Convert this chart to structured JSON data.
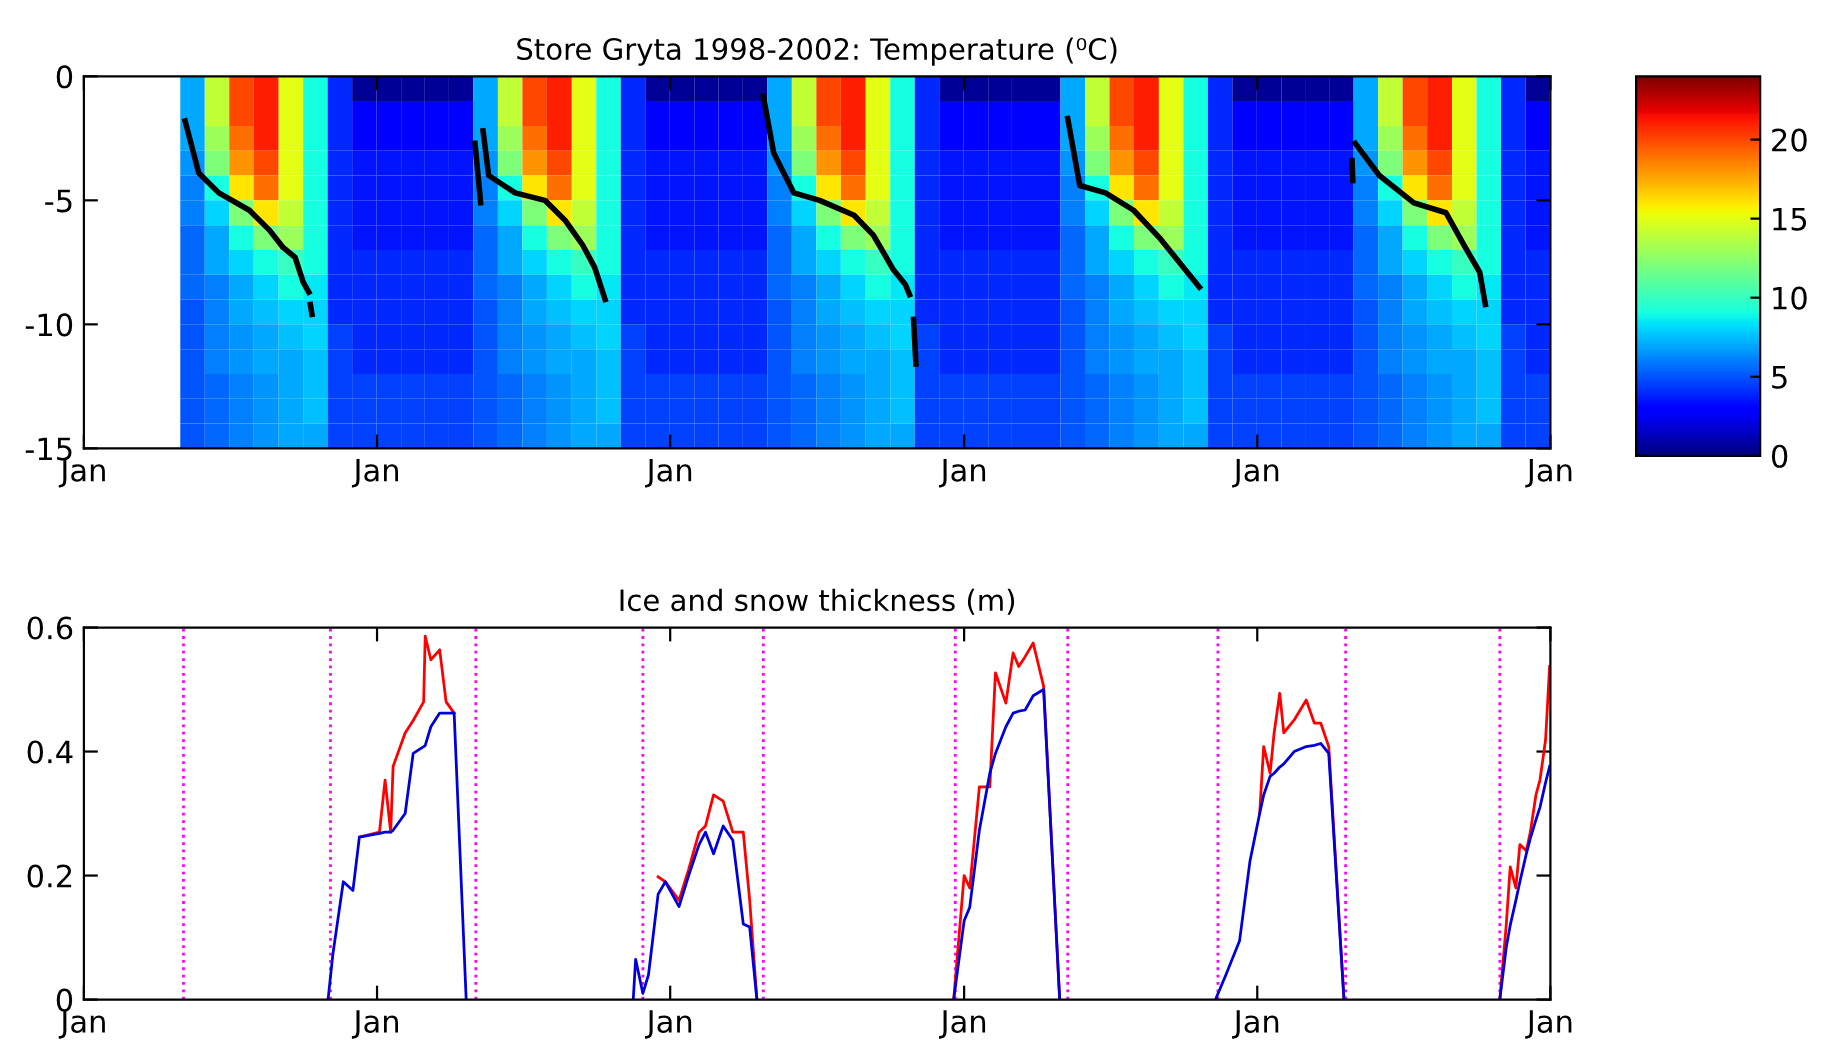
{
  "chart_data": [
    {
      "type": "heatmap",
      "title": "Store Gryta 1998-2002: Temperature (⁰C)",
      "x": [
        "1998-01-16",
        "1998-02-15",
        "1998-03-16",
        "1998-04-16",
        "1998-05-16",
        "1998-06-16",
        "1998-07-16",
        "1998-08-16",
        "1998-09-16",
        "1998-10-16",
        "1998-11-16",
        "1998-12-16",
        "1999-01-16",
        "1999-02-15",
        "1999-03-16",
        "1999-04-16",
        "1999-05-16",
        "1999-06-16",
        "1999-07-16",
        "1999-08-16",
        "1999-09-16",
        "1999-10-16",
        "1999-11-16",
        "1999-12-16",
        "2000-01-16",
        "2000-02-15",
        "2000-03-16",
        "2000-04-16",
        "2000-05-16",
        "2000-06-16",
        "2000-07-16",
        "2000-08-16",
        "2000-09-16",
        "2000-10-16",
        "2000-11-16",
        "2000-12-16",
        "2001-01-16",
        "2001-02-15",
        "2001-03-16",
        "2001-04-16",
        "2001-05-16",
        "2001-06-16",
        "2001-07-16",
        "2001-08-16",
        "2001-09-16",
        "2001-10-16",
        "2001-11-16",
        "2001-12-16",
        "2002-01-16",
        "2002-02-15",
        "2002-03-16",
        "2002-04-16",
        "2002-05-16",
        "2002-06-16",
        "2002-07-16",
        "2002-08-16",
        "2002-09-16",
        "2002-10-16",
        "2002-11-16",
        "2002-12-16"
      ],
      "xlim": [
        "1998-01-01",
        "2003-01-01"
      ],
      "xticks": [
        {
          "value": "1998-01-01",
          "label": "Jan"
        },
        {
          "value": "1999-01-01",
          "label": "Jan"
        },
        {
          "value": "2000-01-01",
          "label": "Jan"
        },
        {
          "value": "2001-01-01",
          "label": "Jan"
        },
        {
          "value": "2002-01-01",
          "label": "Jan"
        },
        {
          "value": "2003-01-01",
          "label": "Jan"
        }
      ],
      "ylim": [
        -15,
        0
      ],
      "yticks": [
        -15,
        -10,
        -5,
        0
      ],
      "clim": [
        0,
        24
      ],
      "cticks": [
        0,
        5,
        10,
        15,
        20
      ],
      "cells": [
        [
          null,
          null,
          null,
          null,
          7,
          14,
          20,
          21,
          15,
          9,
          4,
          0.5,
          0.5,
          0.5,
          0.5,
          0.5,
          7,
          14,
          20,
          21,
          15,
          9,
          4,
          0.5,
          0.5,
          0.5,
          0.5,
          0.5,
          7,
          14,
          20,
          21,
          15,
          9,
          4,
          0.5,
          0.5,
          0.5,
          0.5,
          0.5,
          7,
          14,
          20,
          21,
          15,
          9,
          4,
          0.5,
          0.5,
          0.5,
          0.5,
          0.5,
          7,
          14,
          20,
          21,
          15,
          9,
          4,
          0.5
        ],
        [
          null,
          null,
          null,
          null,
          7,
          14,
          20,
          21,
          15,
          9,
          4,
          3,
          3,
          3,
          3,
          3,
          7,
          14,
          20,
          21,
          15,
          9,
          4,
          3,
          3,
          3,
          3,
          3,
          7,
          14,
          20,
          21,
          15,
          9,
          4,
          3,
          3,
          3,
          3,
          3,
          7,
          14,
          20,
          21,
          15,
          9,
          4,
          3,
          3,
          3,
          3,
          3,
          7,
          14,
          20,
          21,
          15,
          9,
          4,
          3
        ],
        [
          null,
          null,
          null,
          null,
          7,
          13,
          19,
          21,
          15,
          9,
          4,
          3,
          3,
          3,
          3,
          3,
          7,
          13,
          19,
          21,
          15,
          9,
          4,
          3,
          3,
          3,
          3,
          3,
          7,
          13,
          19,
          21,
          15,
          9,
          4,
          3,
          3,
          3,
          3,
          3,
          7,
          13,
          19,
          21,
          15,
          9,
          4,
          3,
          3,
          3,
          3,
          3,
          7,
          13,
          19,
          21,
          15,
          9,
          4,
          3
        ],
        [
          null,
          null,
          null,
          null,
          6.5,
          12,
          18,
          20,
          15,
          9,
          4,
          3.5,
          3.5,
          3.5,
          3.5,
          3.5,
          6.5,
          12,
          18,
          20,
          15,
          9,
          4,
          3.5,
          3.5,
          3.5,
          3.5,
          3.5,
          6.5,
          12,
          18,
          20,
          15,
          9,
          4,
          3.5,
          3.5,
          3.5,
          3.5,
          3.5,
          6.5,
          12,
          18,
          20,
          15,
          9,
          4,
          3.5,
          3.5,
          3.5,
          3.5,
          3.5,
          6.5,
          12,
          18,
          20,
          15,
          9,
          4,
          3.5
        ],
        [
          null,
          null,
          null,
          null,
          6,
          9,
          16,
          19,
          15,
          9,
          4,
          3.5,
          3.5,
          3.5,
          3.5,
          3.5,
          6,
          9,
          16,
          19,
          15,
          9,
          4,
          3.5,
          3.5,
          3.5,
          3.5,
          3.5,
          6,
          9,
          16,
          19,
          15,
          9,
          4,
          3.5,
          3.5,
          3.5,
          3.5,
          3.5,
          6,
          9,
          16,
          19,
          15,
          9,
          4,
          3.5,
          3.5,
          3.5,
          3.5,
          3.5,
          6,
          9,
          16,
          19,
          15,
          9,
          4,
          3.5
        ],
        [
          null,
          null,
          null,
          null,
          6,
          8,
          12,
          16,
          14,
          9,
          4,
          3.5,
          3.5,
          3.5,
          3.5,
          3.5,
          6,
          8,
          12,
          16,
          14,
          9,
          4,
          3.5,
          3.5,
          3.5,
          3.5,
          3.5,
          6,
          8,
          12,
          16,
          14,
          9,
          4,
          3.5,
          3.5,
          3.5,
          3.5,
          3.5,
          6,
          8,
          12,
          16,
          14,
          9,
          4,
          3.5,
          3.5,
          3.5,
          3.5,
          3.5,
          6,
          8,
          12,
          16,
          14,
          9,
          4,
          3.5
        ],
        [
          null,
          null,
          null,
          null,
          5.5,
          7,
          9,
          12,
          13,
          9,
          4,
          3.5,
          3.5,
          3.5,
          3.5,
          3.5,
          5.5,
          7,
          9,
          12,
          13,
          9,
          4,
          3.5,
          3.5,
          3.5,
          3.5,
          3.5,
          5.5,
          7,
          9,
          12,
          13,
          9,
          4,
          3.5,
          3.5,
          3.5,
          3.5,
          3.5,
          5.5,
          7,
          9,
          12,
          13,
          9,
          4,
          3.5,
          3.5,
          3.5,
          3.5,
          3.5,
          5.5,
          7,
          9,
          12,
          13,
          9,
          4,
          3.5
        ],
        [
          null,
          null,
          null,
          null,
          5.5,
          7,
          8,
          9,
          10,
          9,
          4,
          4,
          4,
          4,
          4,
          4,
          5.5,
          7,
          8,
          9,
          10,
          9,
          4,
          4,
          4,
          4,
          4,
          4,
          5.5,
          7,
          8,
          9,
          10,
          9,
          4,
          4,
          4,
          4,
          4,
          4,
          5.5,
          7,
          8,
          9,
          10,
          9,
          4,
          4,
          4,
          4,
          4,
          4,
          5.5,
          7,
          8,
          9,
          10,
          9,
          4,
          4
        ],
        [
          null,
          null,
          null,
          null,
          5.5,
          6,
          7,
          8,
          9,
          8.5,
          4,
          4,
          4,
          4,
          4,
          4,
          5.5,
          6,
          7,
          8,
          9,
          8.5,
          4,
          4,
          4,
          4,
          4,
          4,
          5.5,
          6,
          7,
          8,
          9,
          8.5,
          4,
          4,
          4,
          4,
          4,
          4,
          5.5,
          6,
          7,
          8,
          9,
          8.5,
          4,
          4,
          4,
          4,
          4,
          4,
          5.5,
          6,
          7,
          8,
          9,
          8.5,
          4,
          4
        ],
        [
          null,
          null,
          null,
          null,
          5,
          6,
          7,
          7.5,
          8,
          8,
          4,
          4,
          4,
          4,
          4,
          4,
          5,
          6,
          7,
          7.5,
          8,
          8,
          4,
          4,
          4,
          4,
          4,
          4,
          5,
          6,
          7,
          7.5,
          8,
          8,
          4,
          4,
          4,
          4,
          4,
          4,
          5,
          6,
          7,
          7.5,
          8,
          8,
          4,
          4,
          4,
          4,
          4,
          4,
          5,
          6,
          7,
          7.5,
          8,
          8,
          4,
          4
        ],
        [
          null,
          null,
          null,
          null,
          5,
          6,
          6.5,
          7,
          7.5,
          8,
          4.5,
          4,
          4,
          4,
          4,
          4,
          5,
          6,
          6.5,
          7,
          7.5,
          8,
          4.5,
          4,
          4,
          4,
          4,
          4,
          5,
          6,
          6.5,
          7,
          7.5,
          8,
          4.5,
          4,
          4,
          4,
          4,
          4,
          5,
          6,
          6.5,
          7,
          7.5,
          8,
          4.5,
          4,
          4,
          4,
          4,
          4,
          5,
          6,
          6.5,
          7,
          7.5,
          8,
          4.5,
          4
        ],
        [
          null,
          null,
          null,
          null,
          5,
          6,
          6.5,
          7,
          7,
          7.5,
          4.5,
          4,
          4,
          4,
          4,
          4,
          5,
          6,
          6.5,
          7,
          7,
          7.5,
          4.5,
          4,
          4,
          4,
          4,
          4,
          5,
          6,
          6.5,
          7,
          7,
          7.5,
          4.5,
          4,
          4,
          4,
          4,
          4,
          5,
          6,
          6.5,
          7,
          7,
          7.5,
          4.5,
          4,
          4,
          4,
          4,
          4,
          5,
          6,
          6.5,
          7,
          7,
          7.5,
          4.5,
          4
        ],
        [
          null,
          null,
          null,
          null,
          5,
          5.5,
          6,
          6.5,
          7,
          7.5,
          4.5,
          4.5,
          4.5,
          4.5,
          4.5,
          4.5,
          5,
          5.5,
          6,
          6.5,
          7,
          7.5,
          4.5,
          4.5,
          4.5,
          4.5,
          4.5,
          4.5,
          5,
          5.5,
          6,
          6.5,
          7,
          7.5,
          4.5,
          4.5,
          4.5,
          4.5,
          4.5,
          4.5,
          5,
          5.5,
          6,
          6.5,
          7,
          7.5,
          4.5,
          4.5,
          4.5,
          4.5,
          4.5,
          4.5,
          5,
          5.5,
          6,
          6.5,
          7,
          7.5,
          4.5,
          4.5
        ],
        [
          null,
          null,
          null,
          null,
          5,
          5.5,
          6,
          6.5,
          7,
          7.5,
          4.5,
          4.5,
          4.5,
          4.5,
          4.5,
          4.5,
          5,
          5.5,
          6,
          6.5,
          7,
          7.5,
          4.5,
          4.5,
          4.5,
          4.5,
          4.5,
          4.5,
          5,
          5.5,
          6,
          6.5,
          7,
          7.5,
          4.5,
          4.5,
          4.5,
          4.5,
          4.5,
          4.5,
          5,
          5.5,
          6,
          6.5,
          7,
          7.5,
          4.5,
          4.5,
          4.5,
          4.5,
          4.5,
          4.5,
          5,
          5.5,
          6,
          6.5,
          7,
          7.5,
          4.5,
          4.5
        ],
        [
          null,
          null,
          null,
          null,
          5,
          5.5,
          6,
          6.5,
          7,
          7,
          4.5,
          4.5,
          4.5,
          4.5,
          4.5,
          4.5,
          5,
          5.5,
          6,
          6.5,
          7,
          7,
          4.5,
          4.5,
          4.5,
          4.5,
          4.5,
          4.5,
          5,
          5.5,
          6,
          6.5,
          7,
          7,
          4.5,
          4.5,
          4.5,
          4.5,
          4.5,
          4.5,
          5,
          5.5,
          6,
          6.5,
          7,
          7,
          4.5,
          4.5,
          4.5,
          4.5,
          4.5,
          4.5,
          5,
          5.5,
          6,
          6.5,
          7,
          7,
          4.5,
          4.5
        ]
      ],
      "series": [
        {
          "type": "line",
          "color": "#000000",
          "x": [
            "1998-05-07",
            "1998-05-24",
            "1998-06-18",
            "1998-07-26",
            "1998-08-20",
            "1998-09-06",
            "1998-09-21",
            "1998-10-01",
            "1998-10-08",
            "1998-10-09",
            "1998-10-10",
            "1998-10-12",
            "1999-01-01",
            "1999-05-03",
            "1999-05-10",
            "1999-05-11",
            "1999-05-13",
            "1999-05-20",
            "1999-06-22",
            "1999-07-29",
            "1999-08-23",
            "1999-09-14",
            "1999-09-29",
            "1999-10-12",
            "2000-01-01",
            "2000-04-26",
            "2000-05-09",
            "2000-06-03",
            "2000-07-05",
            "2000-08-17",
            "2000-09-10",
            "2000-10-05",
            "2000-10-20",
            "2000-10-25",
            "2000-10-27",
            "2000-10-30",
            "2000-11-02",
            "2001-01-01",
            "2001-05-10",
            "2001-05-25",
            "2001-06-26",
            "2001-07-31",
            "2001-09-01",
            "2001-10-21",
            "2002-01-01",
            "2002-04-29",
            "2002-04-30",
            "2002-05-01",
            "2002-05-03",
            "2002-06-02",
            "2002-07-15",
            "2002-08-24",
            "2002-09-17",
            "2002-10-05",
            "2002-10-12"
          ],
          "values": [
            -1.8,
            -3.9,
            -4.7,
            -5.4,
            -6.2,
            -6.9,
            -7.3,
            -8.3,
            -8.7,
            null,
            -9.2,
            -9.6,
            null,
            -2.7,
            -5.1,
            null,
            -2.2,
            -4.0,
            -4.7,
            -5.0,
            -5.8,
            -6.8,
            -7.7,
            -9.0,
            null,
            -0.8,
            -3.1,
            -4.7,
            -5.0,
            -5.6,
            -6.4,
            -7.8,
            -8.4,
            -8.8,
            null,
            -9.8,
            -11.6,
            null,
            -1.7,
            -4.4,
            -4.7,
            -5.4,
            -6.5,
            -8.5,
            null,
            -3.4,
            -4.2,
            null,
            -2.7,
            -4.0,
            -5.1,
            -5.5,
            -6.9,
            -7.9,
            -9.2
          ]
        }
      ]
    },
    {
      "type": "line",
      "title": "Ice and snow thickness (m)",
      "x": [
        "1998-11-01",
        "1998-11-07",
        "1998-11-20",
        "1998-12-02",
        "1998-12-10",
        "1999-01-04",
        "1999-01-11",
        "1999-01-18",
        "1999-01-21",
        "1999-02-05",
        "1999-02-15",
        "1999-02-28",
        "1999-03-02",
        "1999-03-09",
        "1999-03-20",
        "1999-03-28",
        "1999-04-07",
        "1999-04-22",
        "1999-07-01",
        "1999-11-16",
        "1999-11-19",
        "1999-11-28",
        "1999-12-05",
        "1999-12-17",
        "1999-12-26",
        "2000-01-12",
        "2000-01-24",
        "2000-02-06",
        "2000-02-14",
        "2000-02-24",
        "2000-03-07",
        "2000-03-19",
        "2000-04-01",
        "2000-04-09",
        "2000-04-18",
        "2000-07-01",
        "2000-12-19",
        "2001-01-01",
        "2001-01-08",
        "2001-01-20",
        "2001-02-02",
        "2001-02-09",
        "2001-02-22",
        "2001-03-03",
        "2001-03-10",
        "2001-03-18",
        "2001-03-28",
        "2001-04-10",
        "2001-04-30",
        "2001-07-01",
        "2001-11-10",
        "2001-11-23",
        "2001-12-10",
        "2001-12-23",
        "2002-01-04",
        "2002-01-09",
        "2002-01-17",
        "2002-01-22",
        "2002-01-29",
        "2002-02-03",
        "2002-02-16",
        "2002-03-03",
        "2002-03-13",
        "2002-03-21",
        "2002-03-31",
        "2002-04-19",
        "2002-07-01",
        "2002-10-30",
        "2002-11-07",
        "2002-11-12",
        "2002-11-19",
        "2002-11-24",
        "2002-12-02",
        "2002-12-07",
        "2002-12-14",
        "2002-12-19",
        "2002-12-26",
        "2002-12-31"
      ],
      "series": [
        {
          "color": "#ff0000",
          "values": [
            null,
            null,
            null,
            null,
            0.262,
            0.27,
            0.354,
            0.27,
            0.376,
            0.43,
            0.45,
            0.48,
            0.586,
            0.548,
            0.564,
            0.48,
            0.462,
            null,
            null,
            null,
            null,
            null,
            null,
            0.198,
            0.19,
            0.16,
            0.21,
            0.27,
            0.28,
            0.33,
            0.32,
            0.27,
            0.27,
            0.16,
            0,
            null,
            0,
            0.2,
            0.18,
            0.343,
            0.343,
            0.527,
            0.478,
            0.559,
            0.537,
            0.553,
            0.575,
            0.505,
            0,
            null,
            null,
            null,
            null,
            null,
            0.3,
            0.408,
            0.365,
            0.43,
            0.494,
            0.43,
            0.451,
            0.483,
            0.446,
            0.446,
            0.408,
            0,
            null,
            0,
            0.12,
            0.214,
            0.18,
            0.25,
            0.24,
            0.27,
            0.33,
            0.354,
            0.419,
            0.537
          ]
        },
        {
          "color": "#0000dd",
          "values": [
            0,
            0.073,
            0.19,
            0.176,
            0.262,
            0.268,
            0.27,
            0.27,
            0.273,
            0.3,
            0.397,
            0.408,
            0.41,
            0.44,
            0.462,
            0.462,
            0.462,
            0,
            null,
            0,
            0.065,
            0.01,
            0.04,
            0.17,
            0.19,
            0.15,
            0.2,
            0.25,
            0.27,
            0.235,
            0.28,
            0.257,
            0.122,
            0.117,
            0,
            null,
            0,
            0.127,
            0.149,
            0.273,
            0.365,
            0.397,
            0.44,
            0.462,
            0.465,
            0.467,
            0.49,
            0.5,
            0,
            null,
            0,
            0.04,
            0.095,
            0.224,
            0.3,
            0.33,
            0.36,
            0.365,
            0.375,
            0.38,
            0.4,
            0.408,
            0.41,
            0.413,
            0.397,
            0,
            null,
            0,
            0.084,
            0.12,
            0.16,
            0.19,
            0.235,
            0.26,
            0.29,
            0.31,
            0.35,
            0.376
          ]
        }
      ],
      "xlim": [
        "1998-01-01",
        "2003-01-01"
      ],
      "xticks": [
        {
          "value": "1998-01-01",
          "label": "Jan"
        },
        {
          "value": "1999-01-01",
          "label": "Jan"
        },
        {
          "value": "2000-01-01",
          "label": "Jan"
        },
        {
          "value": "2001-01-01",
          "label": "Jan"
        },
        {
          "value": "2002-01-01",
          "label": "Jan"
        },
        {
          "value": "2003-01-01",
          "label": "Jan"
        }
      ],
      "ylim": [
        0,
        0.6
      ],
      "yticks": [
        0,
        0.2,
        0.4,
        0.6
      ],
      "ref_lines": [
        {
          "axis": "x",
          "value": "1998-05-05",
          "color": "#ff00ff",
          "line_style": "dotted"
        },
        {
          "axis": "x",
          "value": "1998-11-04",
          "color": "#ff00ff",
          "line_style": "dotted"
        },
        {
          "axis": "x",
          "value": "1999-05-04",
          "color": "#ff00ff",
          "line_style": "dotted"
        },
        {
          "axis": "x",
          "value": "1999-11-28",
          "color": "#ff00ff",
          "line_style": "dotted"
        },
        {
          "axis": "x",
          "value": "2000-04-26",
          "color": "#ff00ff",
          "line_style": "dotted"
        },
        {
          "axis": "x",
          "value": "2000-12-21",
          "color": "#ff00ff",
          "line_style": "dotted"
        },
        {
          "axis": "x",
          "value": "2001-05-10",
          "color": "#ff00ff",
          "line_style": "dotted"
        },
        {
          "axis": "x",
          "value": "2001-11-13",
          "color": "#ff00ff",
          "line_style": "dotted"
        },
        {
          "axis": "x",
          "value": "2002-04-21",
          "color": "#ff00ff",
          "line_style": "dotted"
        },
        {
          "axis": "x",
          "value": "2002-10-30",
          "color": "#ff00ff",
          "line_style": "dotted"
        }
      ]
    }
  ]
}
